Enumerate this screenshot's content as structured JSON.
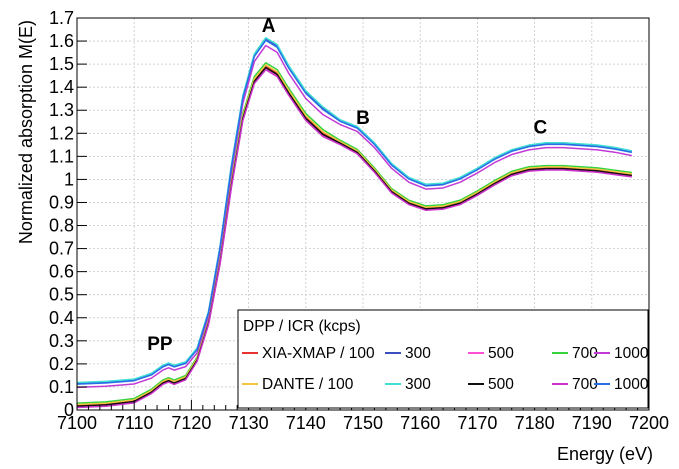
{
  "chart_data": {
    "type": "line",
    "xlabel": "Energy (eV)",
    "ylabel": "Normalized absorption M(E)",
    "xlim": [
      7100,
      7200
    ],
    "ylim": [
      0,
      1.7
    ],
    "xticks": [
      7100,
      7110,
      7120,
      7130,
      7140,
      7150,
      7160,
      7170,
      7180,
      7190,
      7200
    ],
    "yticks": [
      0,
      0.1,
      0.2,
      0.3,
      0.4,
      0.5,
      0.6,
      0.7,
      0.8,
      0.9,
      1,
      1.1,
      1.2,
      1.3,
      1.4,
      1.5,
      1.6,
      1.7
    ],
    "grid": true,
    "annotations": [
      {
        "text": "A",
        "x": 7133.5,
        "y": 1.64
      },
      {
        "text": "B",
        "x": 7150,
        "y": 1.24
      },
      {
        "text": "C",
        "x": 7181,
        "y": 1.2
      },
      {
        "text": "PP",
        "x": 7114.5,
        "y": 0.26
      }
    ],
    "legend": {
      "title": "DPP / ICR (kcps)",
      "position": "bottom-right",
      "rows": [
        [
          "XIA-XMAP / 100",
          "300",
          "500",
          "700",
          "1000"
        ],
        [
          "DANTE / 100",
          "300",
          "500",
          "700",
          "1000"
        ]
      ]
    },
    "series": [
      {
        "name": "XIA-XMAP / 100",
        "group": "lower",
        "color": "#e8312f",
        "dash": "solid",
        "variant": 0
      },
      {
        "name": "300",
        "group": "upper",
        "color": "#3b4dbf",
        "dash": "solid",
        "variant": 1
      },
      {
        "name": "500",
        "group": "lower",
        "color": "#ff4fd2",
        "dash": "solid",
        "variant": 2
      },
      {
        "name": "700",
        "group": "lower",
        "color": "#35d43e",
        "dash": "solid",
        "variant": 3
      },
      {
        "name": "1000",
        "group": "upper",
        "color": "#c13ad6",
        "dash": "solid",
        "variant": 4
      },
      {
        "name": "DANTE / 100",
        "group": "lower",
        "color": "#f5c542",
        "dash": "solid",
        "variant": 5
      },
      {
        "name": "300",
        "group": "upper",
        "color": "#3ee0d6",
        "dash": "solid",
        "variant": 6
      },
      {
        "name": "500",
        "group": "lower",
        "color": "#111111",
        "dash": "solid",
        "variant": 7
      },
      {
        "name": "700",
        "group": "lower",
        "color": "#cc33cc",
        "dash": "solid",
        "variant": 8
      },
      {
        "name": "1000",
        "group": "upper",
        "color": "#2a6ee8",
        "dash": "solid",
        "variant": 9
      }
    ],
    "curves": {
      "upper": {
        "x": [
          7100,
          7105,
          7110,
          7113,
          7115,
          7116,
          7117,
          7119,
          7121,
          7123,
          7125,
          7127,
          7129,
          7131,
          7133,
          7135,
          7137,
          7140,
          7143,
          7146,
          7149,
          7152,
          7155,
          7158,
          7161,
          7164,
          7167,
          7170,
          7173,
          7176,
          7179,
          7182,
          7185,
          7188,
          7191,
          7194,
          7197
        ],
        "y": [
          0.11,
          0.115,
          0.125,
          0.15,
          0.185,
          0.195,
          0.185,
          0.2,
          0.26,
          0.42,
          0.7,
          1.05,
          1.35,
          1.53,
          1.6,
          1.57,
          1.48,
          1.37,
          1.3,
          1.25,
          1.22,
          1.15,
          1.06,
          1.0,
          0.97,
          0.975,
          1.0,
          1.04,
          1.085,
          1.12,
          1.14,
          1.15,
          1.15,
          1.145,
          1.14,
          1.13,
          1.115
        ]
      },
      "lower": {
        "x": [
          7100,
          7105,
          7110,
          7113,
          7115,
          7116,
          7117,
          7119,
          7121,
          7123,
          7125,
          7127,
          7129,
          7131,
          7133,
          7135,
          7137,
          7140,
          7143,
          7146,
          7149,
          7152,
          7155,
          7158,
          7161,
          7164,
          7167,
          7170,
          7173,
          7176,
          7179,
          7182,
          7185,
          7188,
          7191,
          7194,
          7197
        ],
        "y": [
          0.02,
          0.025,
          0.04,
          0.08,
          0.12,
          0.13,
          0.12,
          0.14,
          0.22,
          0.38,
          0.64,
          0.98,
          1.27,
          1.43,
          1.49,
          1.46,
          1.38,
          1.27,
          1.2,
          1.16,
          1.12,
          1.04,
          0.95,
          0.9,
          0.875,
          0.88,
          0.9,
          0.94,
          0.985,
          1.025,
          1.045,
          1.05,
          1.05,
          1.045,
          1.04,
          1.03,
          1.02
        ]
      }
    }
  }
}
